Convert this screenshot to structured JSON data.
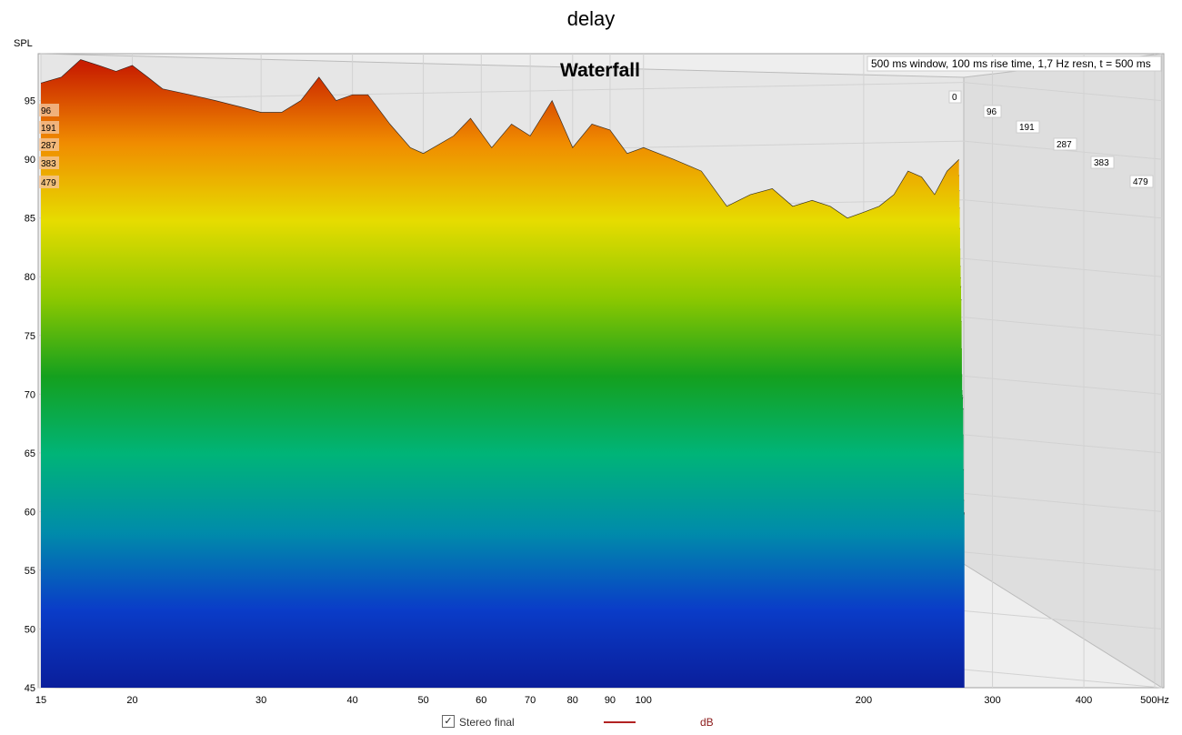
{
  "page": {
    "title": "delay",
    "y_unit_label": "SPL"
  },
  "chart_data": {
    "type": "waterfall",
    "title": "Waterfall",
    "settings": "500 ms window, 100 ms rise time,  1,7 Hz resn, t = 500 ms",
    "xlabel": "Hz",
    "x_scale": "log",
    "xlim": [
      15,
      500
    ],
    "x_ticks": [
      15,
      20,
      30,
      40,
      50,
      60,
      70,
      80,
      90,
      100,
      200,
      300,
      400,
      500
    ],
    "x_tick_labels": [
      "15",
      "20",
      "30",
      "40",
      "50",
      "60",
      "70",
      "80",
      "90",
      "100",
      "200",
      "300",
      "400",
      "500Hz"
    ],
    "ylabel": "SPL",
    "ylim": [
      45,
      99
    ],
    "y_ticks": [
      45,
      50,
      55,
      60,
      65,
      70,
      75,
      80,
      85,
      90,
      95
    ],
    "time_labels_ms": [
      "0",
      "96",
      "191",
      "287",
      "383",
      "479"
    ],
    "grid": true,
    "colormap": [
      "#c81e00",
      "#f08c00",
      "#e6dc00",
      "#8cc800",
      "#14a01e",
      "#00b478",
      "#008caa",
      "#0a3cc8",
      "#0a1e9b"
    ],
    "front_slice": {
      "time_ms": 0,
      "x": [
        15,
        16,
        17,
        18,
        19,
        20,
        21,
        22,
        24,
        26,
        28,
        30,
        32,
        34,
        36,
        38,
        40,
        42,
        45,
        48,
        50,
        55,
        58,
        62,
        66,
        70,
        75,
        80,
        85,
        90,
        95,
        100,
        110,
        120,
        130,
        140,
        150,
        160,
        170,
        180,
        190,
        200,
        210,
        220,
        230,
        240,
        250,
        260,
        270
      ],
      "y": [
        96.5,
        97,
        98.5,
        98,
        97.5,
        98,
        97,
        96,
        95.5,
        95,
        94.5,
        94,
        94,
        95,
        97,
        95,
        95.5,
        95.5,
        93,
        91,
        90.5,
        92,
        93.5,
        91,
        93,
        92,
        95,
        91,
        93,
        92.5,
        90.5,
        91,
        90,
        89,
        86,
        87,
        87.5,
        86,
        86.5,
        86,
        85,
        85.5,
        86,
        87,
        89,
        88.5,
        87,
        89,
        90
      ]
    },
    "surface_floor_spl": 51,
    "legend": {
      "series": "Stereo final",
      "unit": "dB",
      "checked": true,
      "color": "#b22222"
    }
  }
}
